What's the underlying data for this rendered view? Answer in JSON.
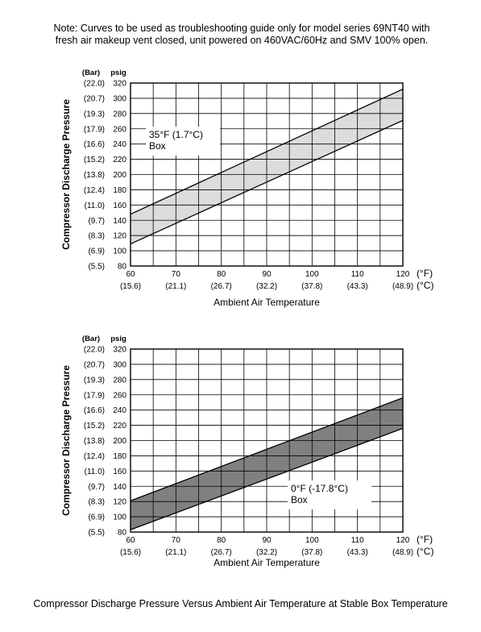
{
  "note": {
    "line1": "Note: Curves to be used as troubleshooting guide only for model series 69NT40 with",
    "line2": "fresh air makeup vent closed, unit powered on 460VAC/60Hz and SMV 100% open."
  },
  "caption": "Compressor Discharge Pressure Versus Ambient Air Temperature at Stable Box Temperature",
  "colors": {
    "band_light": "#dcdcdc",
    "band_dark": "#808080",
    "grid": "#000000"
  },
  "chart_data": [
    {
      "type": "area",
      "title": "",
      "xlabel": "Ambient Air Temperature",
      "ylabel": "Compressor Discharge Pressure",
      "y_unit_left": "(Bar)",
      "y_unit_right": "psig",
      "x_unit_f": "(°F)",
      "x_unit_c": "(°C)",
      "x_ticks": [
        "60",
        "70",
        "80",
        "90",
        "100",
        "110",
        "120"
      ],
      "x_ticks_c": [
        "(15.6)",
        "(21.1)",
        "(26.7)",
        "(32.2)",
        "(37.8)",
        "(43.3)",
        "(48.9)"
      ],
      "y_ticks": [
        "320",
        "300",
        "280",
        "260",
        "240",
        "220",
        "200",
        "180",
        "160",
        "140",
        "120",
        "100",
        "80"
      ],
      "y_ticks_bar": [
        "(22.0)",
        "(20.7)",
        "(19.3)",
        "(17.9)",
        "(16.6)",
        "(15.2)",
        "(13.8)",
        "(12.4)",
        "(11.0)",
        "(9.7)",
        "(8.3)",
        "(6.9)",
        "(5.5)"
      ],
      "xlim": [
        60,
        120
      ],
      "ylim": [
        80,
        320
      ],
      "grid": true,
      "band": {
        "x": [
          60,
          120
        ],
        "upper": [
          148,
          312
        ],
        "lower": [
          109,
          271
        ]
      },
      "annotation": {
        "line1": "35°F (1.7°C)",
        "line2": "Box"
      }
    },
    {
      "type": "area",
      "title": "",
      "xlabel": "Ambient Air Temperature",
      "ylabel": "Compressor Discharge Pressure",
      "y_unit_left": "(Bar)",
      "y_unit_right": "psig",
      "x_unit_f": "(°F)",
      "x_unit_c": "(°C)",
      "x_ticks": [
        "60",
        "70",
        "80",
        "90",
        "100",
        "110",
        "120"
      ],
      "x_ticks_c": [
        "(15.6)",
        "(21.1)",
        "(26.7)",
        "(32.2)",
        "(37.8)",
        "(43.3)",
        "(48.9)"
      ],
      "y_ticks": [
        "320",
        "300",
        "280",
        "260",
        "240",
        "220",
        "200",
        "180",
        "160",
        "140",
        "120",
        "100",
        "80"
      ],
      "y_ticks_bar": [
        "(22.0)",
        "(20.7)",
        "(19.3)",
        "(17.9)",
        "(16.6)",
        "(15.2)",
        "(13.8)",
        "(12.4)",
        "(11.0)",
        "(9.7)",
        "(8.3)",
        "(6.9)",
        "(5.5)"
      ],
      "xlim": [
        60,
        120
      ],
      "ylim": [
        80,
        320
      ],
      "grid": true,
      "band": {
        "x": [
          60,
          120
        ],
        "upper": [
          121,
          256
        ],
        "lower": [
          83,
          216
        ]
      },
      "annotation": {
        "line1": "0°F (-17.8°C)",
        "line2": "Box"
      }
    }
  ]
}
